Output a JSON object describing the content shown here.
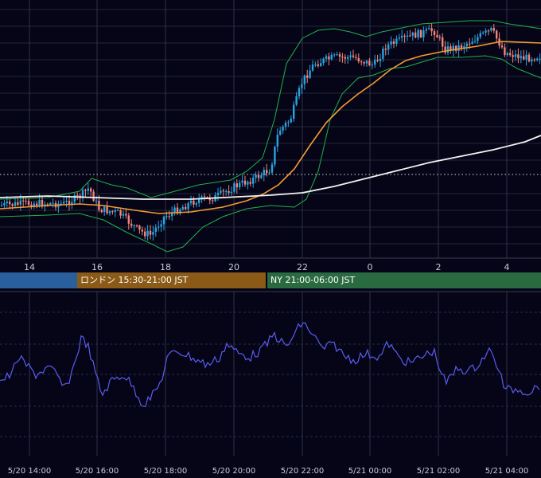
{
  "chart_data": {
    "type": "candlestick",
    "price_panel": {
      "x_tick_labels": [
        "14",
        "16",
        "18",
        "20",
        "22",
        "0",
        "2",
        "4"
      ],
      "candles": [],
      "overlays": [
        {
          "name": "bollinger-upper",
          "color": "#22b04a"
        },
        {
          "name": "bollinger-lower",
          "color": "#22b04a"
        },
        {
          "name": "moving-average-short",
          "color": "#f39c32"
        },
        {
          "name": "moving-average-long",
          "color": "#f2f2f2"
        }
      ],
      "colors": {
        "up": "#29a3e0",
        "down": "#f2857b"
      },
      "grid": true
    },
    "sessions": [
      {
        "label": "",
        "color": "#2a5f9d"
      },
      {
        "label": "ロンドン 15:30-21:00 JST",
        "color": "#8a5a16"
      },
      {
        "label": "NY 21:00-06:00 JST",
        "color": "#2a6a40"
      }
    ],
    "oscillator_panel": {
      "line_color": "#5b5bf0",
      "x_tick_labels": [
        "5/20 14:00",
        "5/20 16:00",
        "5/20 18:00",
        "5/20 20:00",
        "5/20 22:00",
        "5/21 00:00",
        "5/21 02:00",
        "5/21 04:00"
      ],
      "grid": true
    }
  }
}
